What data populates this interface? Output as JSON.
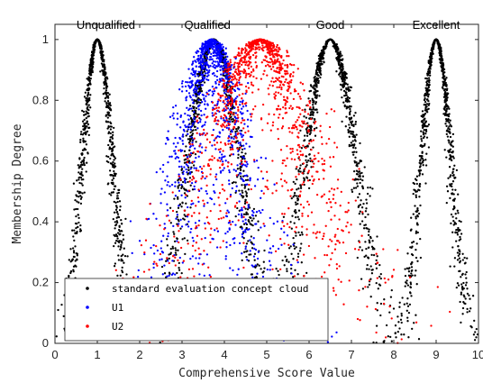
{
  "chart_data": {
    "type": "scatter",
    "title": "",
    "xlabel": "Comprehensive Score Value",
    "ylabel": "Membership Degree",
    "xlim": [
      0,
      10
    ],
    "ylim": [
      0,
      1.05
    ],
    "xticks": [
      "0",
      "1",
      "2",
      "3",
      "4",
      "5",
      "6",
      "7",
      "8",
      "9",
      "10"
    ],
    "yticks": [
      "0",
      "0.2",
      "0.4",
      "0.6",
      "0.8",
      "1"
    ],
    "grid": false,
    "legend_position": "bottom-left",
    "concept_labels": [
      {
        "text": "Unqualified",
        "x": 1.2
      },
      {
        "text": "Qualified",
        "x": 3.6
      },
      {
        "text": "Good",
        "x": 6.5
      },
      {
        "text": "Excellent",
        "x": 9.0
      }
    ],
    "series": [
      {
        "name": "standard evaluation concept cloud",
        "color": "#000000",
        "clouds": [
          {
            "ex": 1.0,
            "en": 0.35,
            "he": 0.05
          },
          {
            "ex": 3.75,
            "en": 0.6,
            "he": 0.09
          },
          {
            "ex": 6.5,
            "en": 0.6,
            "he": 0.09
          },
          {
            "ex": 9.0,
            "en": 0.35,
            "he": 0.05
          }
        ]
      },
      {
        "name": "U1",
        "color": "#0000ff",
        "clouds": [
          {
            "ex": 3.7,
            "en": 0.6,
            "he": 0.32
          }
        ]
      },
      {
        "name": "U2",
        "color": "#ff0000",
        "clouds": [
          {
            "ex": 4.85,
            "en": 1.05,
            "he": 0.45
          }
        ]
      }
    ]
  }
}
